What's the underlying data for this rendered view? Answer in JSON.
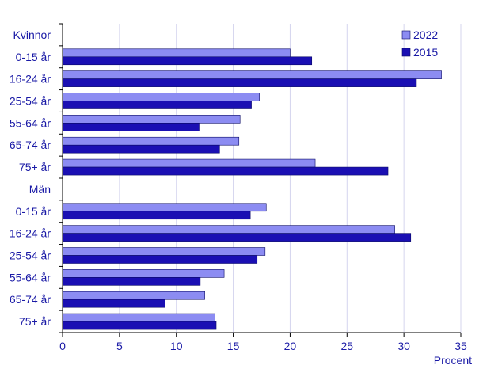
{
  "chart_data": {
    "type": "bar",
    "orientation": "horizontal",
    "categories": [
      "Kvinnor",
      "0-15 år",
      "16-24 år",
      "25-54 år",
      "55-64 år",
      "65-74 år",
      "75+ år",
      "Män",
      "0-15 år",
      "16-24 år",
      "25-54 år",
      "55-64 år",
      "65-74 år",
      "75+ år"
    ],
    "series": [
      {
        "name": "2022",
        "color": "#8c8cf2",
        "values": [
          null,
          20.0,
          33.3,
          17.3,
          15.6,
          15.5,
          22.2,
          null,
          17.9,
          29.2,
          17.8,
          14.2,
          12.5,
          13.4
        ]
      },
      {
        "name": "2015",
        "color": "#1a0fb3",
        "values": [
          null,
          21.9,
          31.1,
          16.6,
          12.0,
          13.8,
          28.6,
          null,
          16.5,
          30.6,
          17.1,
          12.1,
          9.0,
          13.5
        ]
      }
    ],
    "xlim": [
      0,
      35
    ],
    "xticks": [
      0,
      5,
      10,
      15,
      20,
      25,
      30,
      35
    ],
    "xlabel": "Procent",
    "grid": true,
    "legend_position": "top-right"
  },
  "colors": {
    "text": "#1a1aa6",
    "grid": "#d4d4ee",
    "axis": "#000000"
  }
}
